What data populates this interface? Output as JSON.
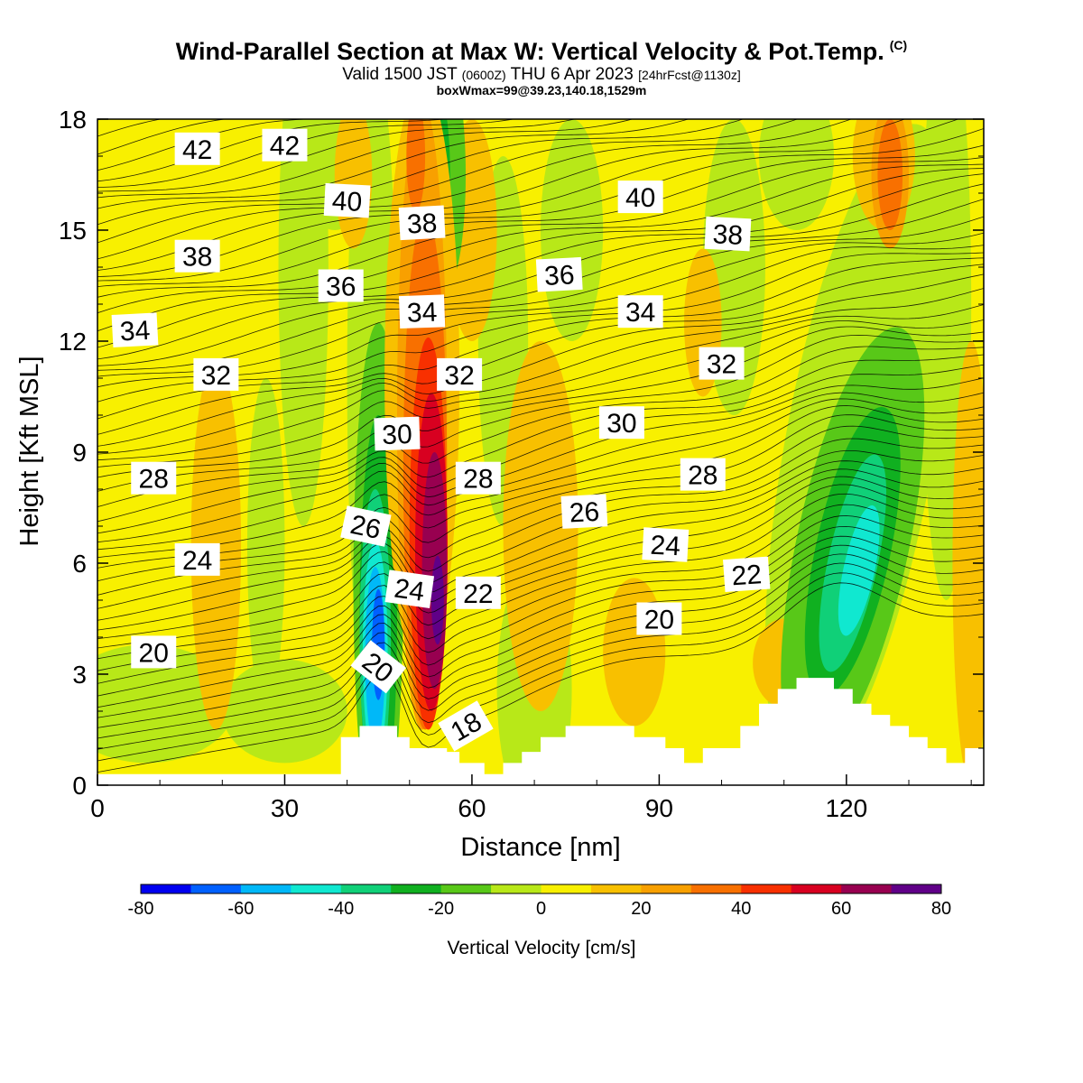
{
  "header": {
    "title": "Wind-Parallel Section at Max W: Vertical Velocity & Pot.Temp.",
    "title_mark": "(C)",
    "valid_prefix": "Valid 1500 JST",
    "valid_utc": "(0600Z)",
    "valid_date": "THU 6 Apr 2023",
    "valid_fcst": "[24hrFcst@1130z]",
    "box_info": "boxWmax=99@39.23,140.18,1529m"
  },
  "chart_data": {
    "type": "heatmap",
    "xlabel": "Distance [nm]",
    "ylabel": "Height [Kft MSL]",
    "xlim": [
      0,
      142
    ],
    "ylim": [
      0,
      18
    ],
    "x_ticks": [
      "0",
      "30",
      "60",
      "90",
      "120"
    ],
    "y_ticks": [
      "0",
      "3",
      "6",
      "9",
      "12",
      "15",
      "18"
    ],
    "colorbar": {
      "label": "Vertical Velocity [cm/s]",
      "tick_labels": [
        "-80",
        "-60",
        "-40",
        "-20",
        "0",
        "20",
        "40",
        "60",
        "80"
      ],
      "levels": [
        -80,
        -70,
        -60,
        -50,
        -40,
        -30,
        -20,
        -10,
        0,
        10,
        20,
        30,
        40,
        50,
        60,
        70,
        80
      ],
      "colors": [
        "#0000f0",
        "#0060ff",
        "#00b8f8",
        "#10e8d0",
        "#10d078",
        "#10b020",
        "#58c818",
        "#b8e818",
        "#f8f000",
        "#f8c000",
        "#f8a000",
        "#f87000",
        "#f83000",
        "#d80020",
        "#980050",
        "#600088"
      ]
    },
    "theta_labels": [
      {
        "text": "42",
        "x": 16,
        "y": 17.2,
        "rot": 0
      },
      {
        "text": "42",
        "x": 30,
        "y": 17.3,
        "rot": 0
      },
      {
        "text": "40",
        "x": 40,
        "y": 15.8,
        "rot": 3
      },
      {
        "text": "38",
        "x": 52,
        "y": 15.2,
        "rot": -3
      },
      {
        "text": "40",
        "x": 87,
        "y": 15.9,
        "rot": 0
      },
      {
        "text": "38",
        "x": 16,
        "y": 14.3,
        "rot": 0
      },
      {
        "text": "38",
        "x": 101,
        "y": 14.9,
        "rot": 3
      },
      {
        "text": "36",
        "x": 39,
        "y": 13.5,
        "rot": 0
      },
      {
        "text": "36",
        "x": 74,
        "y": 13.8,
        "rot": -3
      },
      {
        "text": "34",
        "x": 52,
        "y": 12.8,
        "rot": -2
      },
      {
        "text": "34",
        "x": 87,
        "y": 12.8,
        "rot": 0
      },
      {
        "text": "34",
        "x": 6,
        "y": 12.3,
        "rot": -3
      },
      {
        "text": "32",
        "x": 19,
        "y": 11.1,
        "rot": 0
      },
      {
        "text": "32",
        "x": 58,
        "y": 11.1,
        "rot": 0
      },
      {
        "text": "32",
        "x": 100,
        "y": 11.4,
        "rot": 0
      },
      {
        "text": "30",
        "x": 48,
        "y": 9.5,
        "rot": -2
      },
      {
        "text": "30",
        "x": 84,
        "y": 9.8,
        "rot": 0
      },
      {
        "text": "28",
        "x": 9,
        "y": 8.3,
        "rot": 0
      },
      {
        "text": "28",
        "x": 61,
        "y": 8.3,
        "rot": 0
      },
      {
        "text": "28",
        "x": 97,
        "y": 8.4,
        "rot": 0
      },
      {
        "text": "26",
        "x": 43,
        "y": 7.0,
        "rot": 12
      },
      {
        "text": "26",
        "x": 78,
        "y": 7.4,
        "rot": -3
      },
      {
        "text": "24",
        "x": 16,
        "y": 6.1,
        "rot": 0
      },
      {
        "text": "24",
        "x": 50,
        "y": 5.3,
        "rot": 8
      },
      {
        "text": "24",
        "x": 91,
        "y": 6.5,
        "rot": 3
      },
      {
        "text": "22",
        "x": 61,
        "y": 5.2,
        "rot": 0
      },
      {
        "text": "22",
        "x": 104,
        "y": 5.7,
        "rot": -4
      },
      {
        "text": "20",
        "x": 9,
        "y": 3.6,
        "rot": 0
      },
      {
        "text": "20",
        "x": 90,
        "y": 4.5,
        "rot": 0
      },
      {
        "text": "20",
        "x": 45,
        "y": 3.2,
        "rot": 38
      },
      {
        "text": "18",
        "x": 59,
        "y": 1.6,
        "rot": -30
      }
    ],
    "terrain": [
      [
        0,
        0.3
      ],
      [
        39,
        0.3
      ],
      [
        39,
        1.3
      ],
      [
        42,
        1.3
      ],
      [
        42,
        1.6
      ],
      [
        48,
        1.6
      ],
      [
        48,
        1.3
      ],
      [
        50,
        1.3
      ],
      [
        50,
        1.0
      ],
      [
        56,
        1.0
      ],
      [
        56,
        0.9
      ],
      [
        58,
        0.9
      ],
      [
        58,
        0.6
      ],
      [
        62,
        0.6
      ],
      [
        62,
        0.3
      ],
      [
        65,
        0.3
      ],
      [
        65,
        0.6
      ],
      [
        68,
        0.6
      ],
      [
        68,
        0.9
      ],
      [
        71,
        0.9
      ],
      [
        71,
        1.3
      ],
      [
        75,
        1.3
      ],
      [
        75,
        1.6
      ],
      [
        86,
        1.6
      ],
      [
        86,
        1.3
      ],
      [
        91,
        1.3
      ],
      [
        91,
        1.0
      ],
      [
        94,
        1.0
      ],
      [
        94,
        0.6
      ],
      [
        97,
        0.6
      ],
      [
        97,
        1.0
      ],
      [
        103,
        1.0
      ],
      [
        103,
        1.6
      ],
      [
        106,
        1.6
      ],
      [
        106,
        2.2
      ],
      [
        109,
        2.2
      ],
      [
        109,
        2.6
      ],
      [
        112,
        2.6
      ],
      [
        112,
        2.9
      ],
      [
        118,
        2.9
      ],
      [
        118,
        2.6
      ],
      [
        121,
        2.6
      ],
      [
        121,
        2.2
      ],
      [
        124,
        2.2
      ],
      [
        124,
        1.9
      ],
      [
        127,
        1.9
      ],
      [
        127,
        1.6
      ],
      [
        130,
        1.6
      ],
      [
        130,
        1.3
      ],
      [
        133,
        1.3
      ],
      [
        133,
        1.0
      ],
      [
        136,
        1.0
      ],
      [
        136,
        0.6
      ],
      [
        139,
        0.6
      ],
      [
        139,
        1.0
      ],
      [
        142,
        1.0
      ]
    ]
  }
}
